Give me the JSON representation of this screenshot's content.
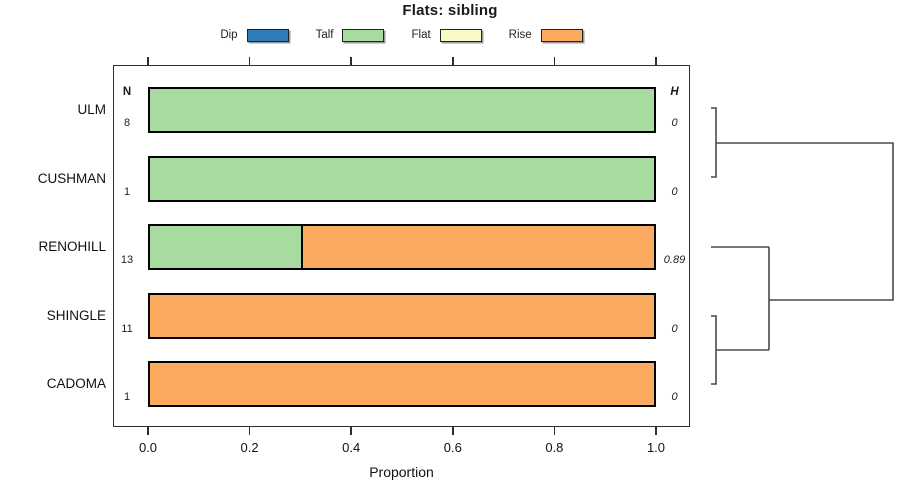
{
  "title": "Flats: sibling",
  "legend": {
    "items": [
      {
        "label": "Dip",
        "color": "#2E7EBB"
      },
      {
        "label": "Talf",
        "color": "#A7DBA0"
      },
      {
        "label": "Flat",
        "color": "#FAFAC8"
      },
      {
        "label": "Rise",
        "color": "#FBAB60"
      }
    ]
  },
  "chart_data": {
    "type": "bar",
    "orientation": "horizontal",
    "stacked": true,
    "title": "Flats: sibling",
    "xlabel": "Proportion",
    "xlim": [
      0,
      1
    ],
    "x_ticks": [
      "0.0",
      "0.2",
      "0.4",
      "0.6",
      "0.8",
      "1.0"
    ],
    "grid": false,
    "legend_position": "top",
    "column_headers": {
      "n": "N",
      "h": "H"
    },
    "categories": [
      "Dip",
      "Talf",
      "Flat",
      "Rise"
    ],
    "colors": {
      "Dip": "#2E7EBB",
      "Talf": "#A7DBA0",
      "Flat": "#FAFAC8",
      "Rise": "#FBAB60"
    },
    "rows": [
      {
        "label": "ULM",
        "n": "8",
        "h": "0",
        "segments": [
          {
            "category": "Talf",
            "value": 1.0
          }
        ]
      },
      {
        "label": "CUSHMAN",
        "n": "1",
        "h": "0",
        "segments": [
          {
            "category": "Talf",
            "value": 1.0
          }
        ]
      },
      {
        "label": "RENOHILL",
        "n": "13",
        "h": "0.89",
        "segments": [
          {
            "category": "Talf",
            "value": 0.3
          },
          {
            "category": "Rise",
            "value": 0.7
          }
        ]
      },
      {
        "label": "SHINGLE",
        "n": "11",
        "h": "0",
        "segments": [
          {
            "category": "Rise",
            "value": 1.0
          }
        ]
      },
      {
        "label": "CADOMA",
        "n": "1",
        "h": "0",
        "segments": [
          {
            "category": "Rise",
            "value": 1.0
          }
        ]
      }
    ],
    "dendrogram": {
      "position": "right",
      "joins": [
        {
          "members": [
            "ULM",
            "CUSHMAN"
          ]
        },
        {
          "members": [
            "SHINGLE",
            "CADOMA"
          ]
        },
        {
          "members": [
            "RENOHILL",
            "(SHINGLE,CADOMA)"
          ]
        },
        {
          "members": [
            "(ULM,CUSHMAN)",
            "(RENOHILL,(SHINGLE,CADOMA))"
          ]
        }
      ]
    }
  }
}
